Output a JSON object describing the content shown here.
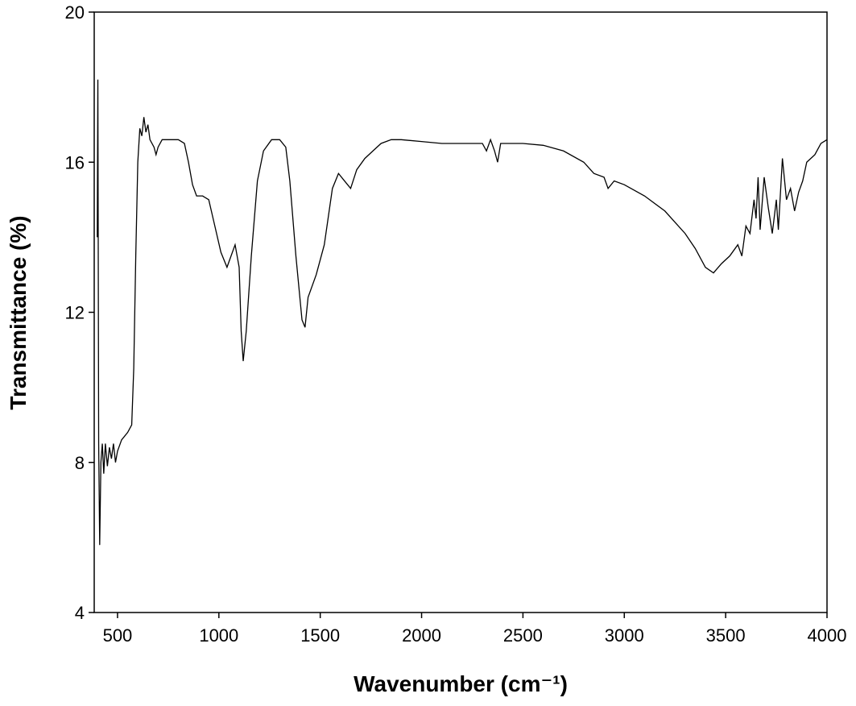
{
  "chart_data": {
    "type": "line",
    "x_label": "Wavenumber (cm⁻¹)",
    "y_label": "Transmittance (%)",
    "xlim": [
      385,
      4000
    ],
    "ylim": [
      4,
      20
    ],
    "xticks": [
      500,
      1000,
      1500,
      2000,
      2500,
      3000,
      3500,
      4000
    ],
    "yticks": [
      4,
      8,
      12,
      16,
      20
    ],
    "series": [
      {
        "color": "#000000",
        "x": [
          400,
          403,
          407,
          412,
          418,
          425,
          432,
          440,
          450,
          460,
          470,
          480,
          490,
          500,
          520,
          550,
          570,
          580,
          590,
          600,
          610,
          620,
          630,
          640,
          650,
          660,
          680,
          690,
          700,
          720,
          800,
          830,
          850,
          870,
          890,
          920,
          950,
          980,
          1010,
          1040,
          1060,
          1080,
          1100,
          1110,
          1120,
          1135,
          1160,
          1190,
          1220,
          1260,
          1300,
          1330,
          1350,
          1380,
          1410,
          1425,
          1440,
          1480,
          1520,
          1560,
          1590,
          1620,
          1650,
          1680,
          1720,
          1760,
          1800,
          1850,
          1900,
          2000,
          2100,
          2200,
          2300,
          2320,
          2340,
          2360,
          2375,
          2390,
          2500,
          2600,
          2700,
          2800,
          2850,
          2900,
          2920,
          2950,
          3000,
          3100,
          3200,
          3300,
          3350,
          3400,
          3440,
          3480,
          3520,
          3560,
          3580,
          3600,
          3620,
          3640,
          3650,
          3660,
          3670,
          3690,
          3710,
          3730,
          3750,
          3760,
          3780,
          3800,
          3820,
          3840,
          3860,
          3880,
          3900,
          3940,
          3970,
          4000
        ],
        "values": [
          14.0,
          18.2,
          8.5,
          5.8,
          8.0,
          8.5,
          7.7,
          8.5,
          7.9,
          8.4,
          8.1,
          8.5,
          8.0,
          8.3,
          8.6,
          8.8,
          9.0,
          10.5,
          13.5,
          16.0,
          16.9,
          16.7,
          17.2,
          16.8,
          17.0,
          16.6,
          16.4,
          16.2,
          16.4,
          16.6,
          16.6,
          16.5,
          16.0,
          15.4,
          15.1,
          15.1,
          15.0,
          14.3,
          13.6,
          13.2,
          13.5,
          13.8,
          13.2,
          11.5,
          10.7,
          11.5,
          13.5,
          15.5,
          16.3,
          16.6,
          16.6,
          16.4,
          15.5,
          13.5,
          11.8,
          11.6,
          12.4,
          13.0,
          13.8,
          15.3,
          15.7,
          15.5,
          15.3,
          15.8,
          16.1,
          16.3,
          16.5,
          16.6,
          16.6,
          16.55,
          16.5,
          16.5,
          16.5,
          16.3,
          16.6,
          16.3,
          16.0,
          16.5,
          16.5,
          16.45,
          16.3,
          16.0,
          15.7,
          15.6,
          15.3,
          15.5,
          15.4,
          15.1,
          14.7,
          14.1,
          13.7,
          13.2,
          13.05,
          13.3,
          13.5,
          13.8,
          13.5,
          14.3,
          14.1,
          15.0,
          14.5,
          15.6,
          14.2,
          15.6,
          14.8,
          14.1,
          15.0,
          14.2,
          16.1,
          15.0,
          15.3,
          14.7,
          15.2,
          15.5,
          16.0,
          16.2,
          16.5,
          16.6
        ]
      }
    ]
  }
}
